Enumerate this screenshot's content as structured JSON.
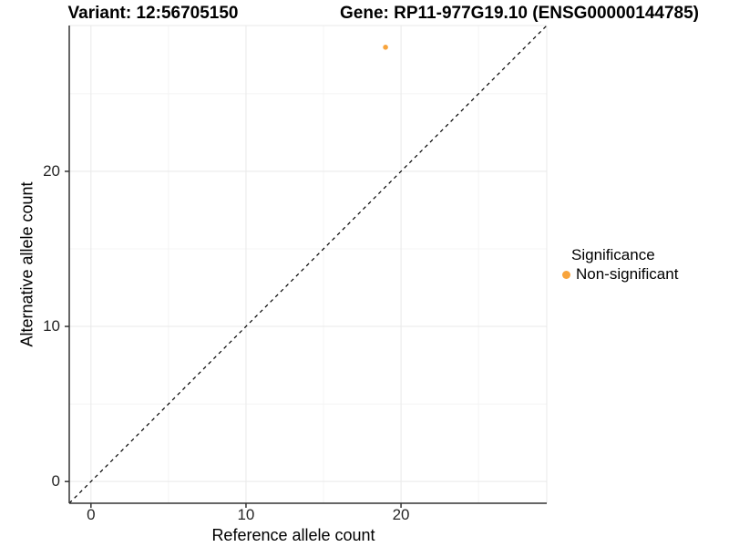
{
  "figure": {
    "title_left": "Variant: 12:56705150",
    "title_right": "Gene: RP11-977G19.10 (ENSG00000144785)"
  },
  "chart_data": {
    "type": "scatter",
    "title": "Variant: 12:56705150   Gene: RP11-977G19.10 (ENSG00000144785)",
    "xlabel": "Reference allele count",
    "ylabel": "Alternative allele count",
    "xlim": [
      -1.4,
      29.4
    ],
    "ylim": [
      -1.4,
      29.4
    ],
    "xticks": [
      0,
      10,
      20
    ],
    "yticks": [
      0,
      10,
      20
    ],
    "minor_ticks": [
      5,
      15,
      25
    ],
    "grid": true,
    "points": [
      {
        "x": 19,
        "y": 28,
        "series": "Non-significant"
      }
    ],
    "reference_line": {
      "type": "identity y=x",
      "style": "dashed",
      "color": "#000000"
    },
    "legend": {
      "title": "Significance",
      "position": "right",
      "items": [
        {
          "label": "Non-significant",
          "color": "#F8A43C"
        }
      ]
    },
    "colors": {
      "point": "#F8A43C",
      "axis_line": "#333333",
      "grid_major": "#e9e9e9",
      "grid_minor": "#f4f4f4",
      "tick": "#333333"
    }
  }
}
